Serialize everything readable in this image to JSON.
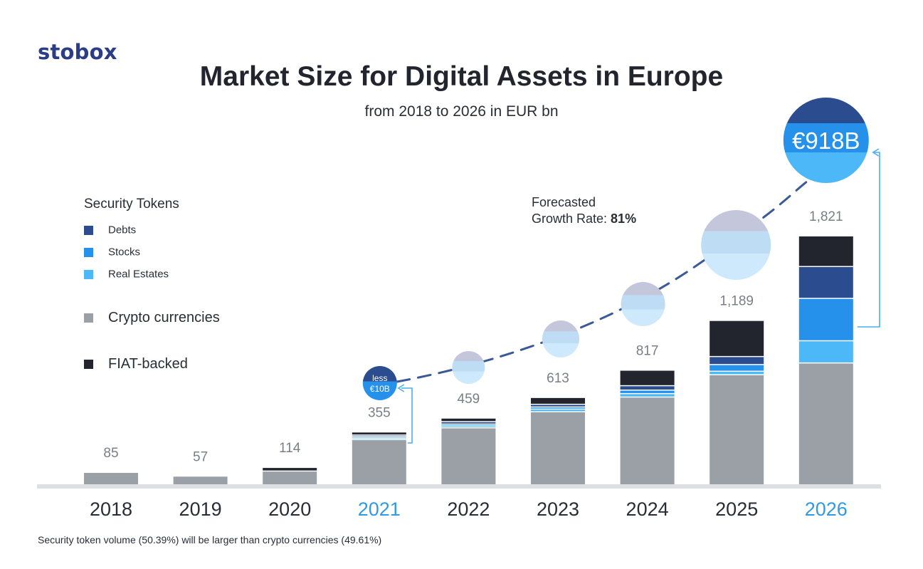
{
  "logo": "stobox",
  "chart_data": {
    "type": "bar",
    "stacked": true,
    "title": "Market Size for Digital Assets in Europe",
    "subtitle": "from 2018 to 2026 in EUR bn",
    "categories": [
      "2018",
      "2019",
      "2020",
      "2021",
      "2022",
      "2023",
      "2024",
      "2025",
      "2026"
    ],
    "highlighted_categories": [
      "2021",
      "2026"
    ],
    "totals": [
      85,
      57,
      114,
      355,
      459,
      613,
      817,
      1189,
      1821
    ],
    "total_labels": [
      "85",
      "57",
      "114",
      "355",
      "459",
      "613",
      "817",
      "1,189",
      "1,821"
    ],
    "series": [
      {
        "name": "Crypto currencies",
        "color": "#9aa0a6",
        "values": [
          85,
          57,
          95,
          330,
          418,
          538,
          648,
          815,
          903
        ]
      },
      {
        "name": "Real Estates",
        "color": "#4db8f7",
        "values": [
          0,
          0,
          0,
          3,
          6,
          12,
          18,
          18,
          158
        ]
      },
      {
        "name": "Stocks",
        "color": "#2591eb",
        "values": [
          0,
          0,
          0,
          3,
          6,
          8,
          18,
          42,
          309
        ]
      },
      {
        "name": "Debts",
        "color": "#2b4c8f",
        "values": [
          0,
          0,
          0,
          4,
          10,
          12,
          25,
          52,
          230
        ]
      },
      {
        "name": "FIAT-backed",
        "color": "#22252d",
        "values": [
          0,
          0,
          19,
          15,
          19,
          43,
          108,
          262,
          221
        ]
      }
    ],
    "ylim": [
      0,
      1821
    ],
    "grid": false,
    "legend_position": "left",
    "legend": {
      "group_title": "Security Tokens",
      "items": [
        {
          "label": "Debts",
          "color": "#2b4c8f"
        },
        {
          "label": "Stocks",
          "color": "#2591eb"
        },
        {
          "label": "Real Estates",
          "color": "#4db8f7"
        },
        {
          "label": "Crypto currencies",
          "color": "#9aa0a6"
        },
        {
          "label": "FIAT-backed",
          "color": "#22252d"
        }
      ]
    },
    "security_token_bubbles": [
      {
        "year": "2021",
        "label_line1": "less",
        "label_line2": "€10B"
      },
      {
        "year": "2022"
      },
      {
        "year": "2023"
      },
      {
        "year": "2024"
      },
      {
        "year": "2025"
      },
      {
        "year": "2026",
        "label": "€918B"
      }
    ],
    "annotation": {
      "line1": "Forecasted",
      "line2_prefix": "Growth Rate: ",
      "line2_value": "81%"
    }
  },
  "footnote": "Security token volume (50.39%) will be larger than crypto currencies (49.61%)",
  "colors": {
    "brand": "#2b3d86",
    "highlight_year": "#2f9ae6",
    "dashed_curve": "#3a5a97",
    "axis": "#dcdfe3",
    "connector": "#4aaef0"
  }
}
